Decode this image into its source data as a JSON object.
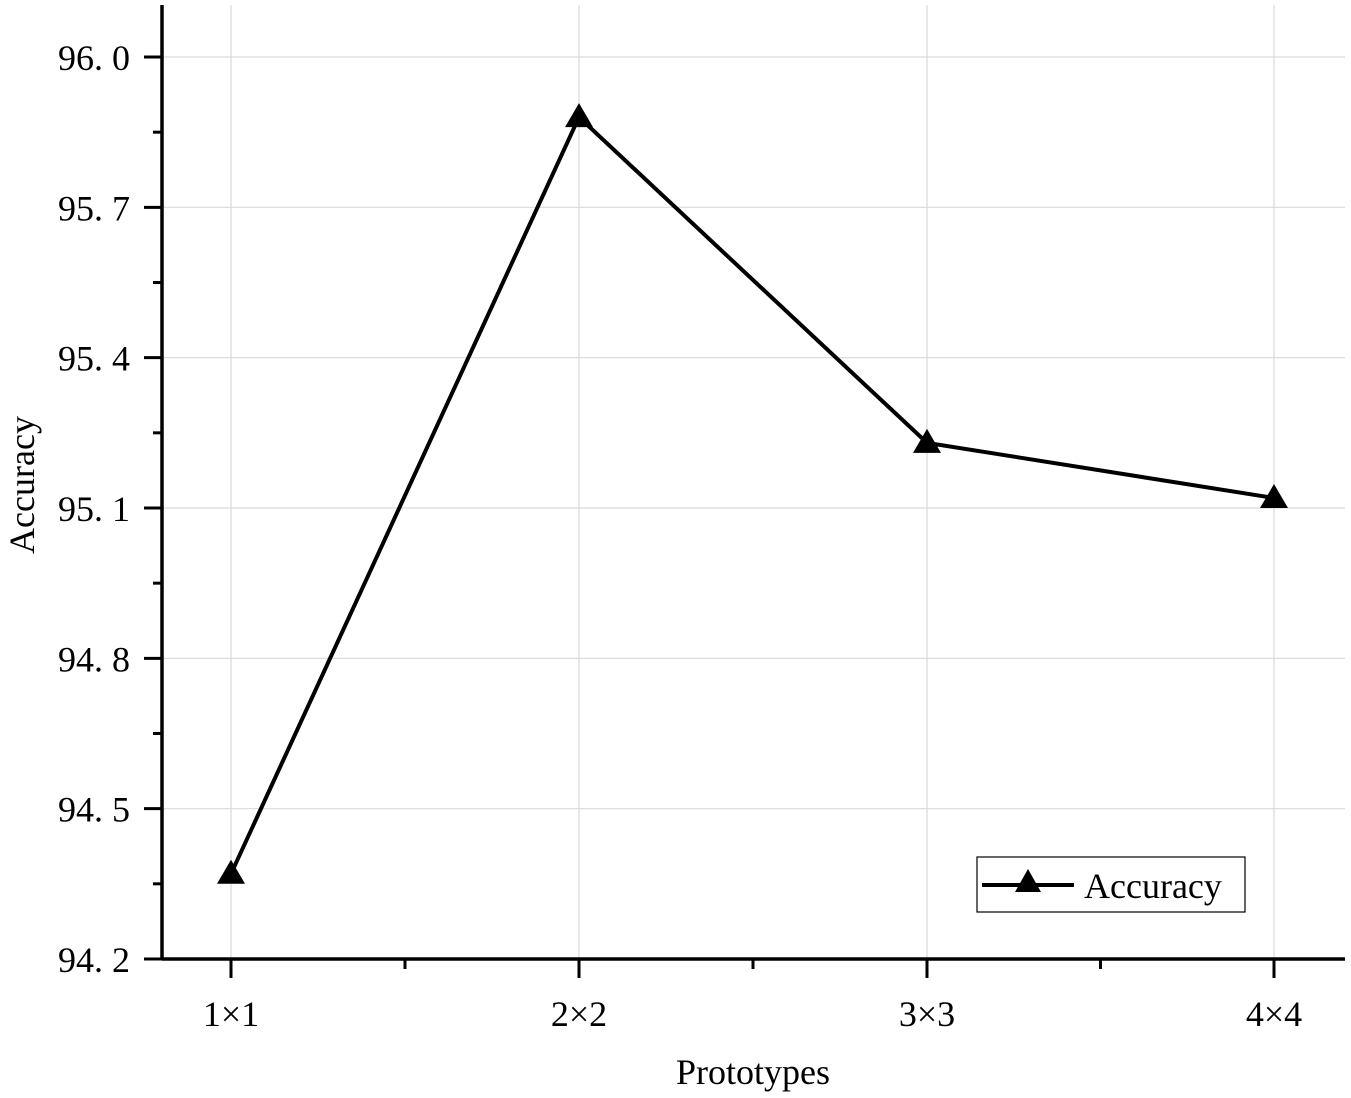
{
  "chart_data": {
    "type": "line",
    "title": "",
    "xlabel": "Prototypes",
    "ylabel": "Accuracy",
    "categories": [
      "1×1",
      "2×2",
      "3×3",
      "4×4"
    ],
    "series": [
      {
        "name": "Accuracy",
        "marker": "triangle",
        "color": "#000000",
        "values": [
          94.37,
          95.88,
          95.23,
          95.12
        ]
      }
    ],
    "ylim": [
      94.2,
      96.1
    ],
    "yticks": [
      94.2,
      94.5,
      94.8,
      95.1,
      95.4,
      95.7,
      96.0
    ],
    "ytick_labels": [
      "94. 2",
      "94. 5",
      "94. 8",
      "95. 1",
      "95. 4",
      "95. 7",
      "96. 0"
    ],
    "grid": true,
    "legend_position": "lower right"
  },
  "legend": {
    "label": "Accuracy"
  },
  "axes": {
    "xlabel": "Prototypes",
    "ylabel": "Accuracy"
  },
  "colors": {
    "line": "#000000",
    "grid": "#d9d9d9",
    "axis": "#000000"
  }
}
